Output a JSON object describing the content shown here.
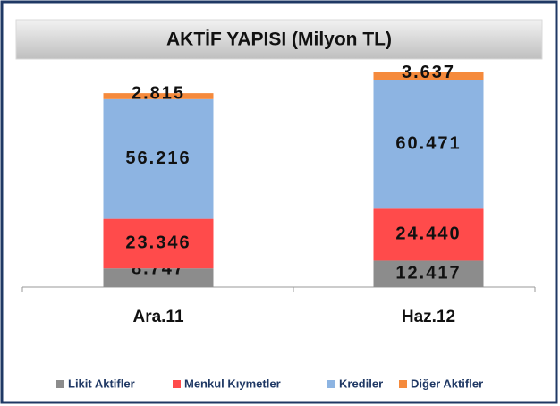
{
  "chart_data": {
    "type": "stacked-bar",
    "title": "AKTİF YAPISI (Milyon TL)",
    "categories": [
      "Ara.11",
      "Haz.12"
    ],
    "series": [
      {
        "name": "Likit Aktifler",
        "color": "#8c8c8c",
        "values": [
          8747,
          12417
        ],
        "value_labels": [
          "8.747",
          "12.417"
        ]
      },
      {
        "name": "Menkul Kıymetler",
        "color": "#ff4b4b",
        "values": [
          23346,
          24440
        ],
        "value_labels": [
          "23.346",
          "24.440"
        ]
      },
      {
        "name": "Krediler",
        "color": "#8db4e2",
        "values": [
          56216,
          60471
        ],
        "value_labels": [
          "56.216",
          "60.471"
        ]
      },
      {
        "name": "Diğer Aktifler",
        "color": "#f58a3c",
        "values": [
          2815,
          3637
        ],
        "value_labels": [
          "2.815",
          "3.637"
        ]
      }
    ]
  }
}
